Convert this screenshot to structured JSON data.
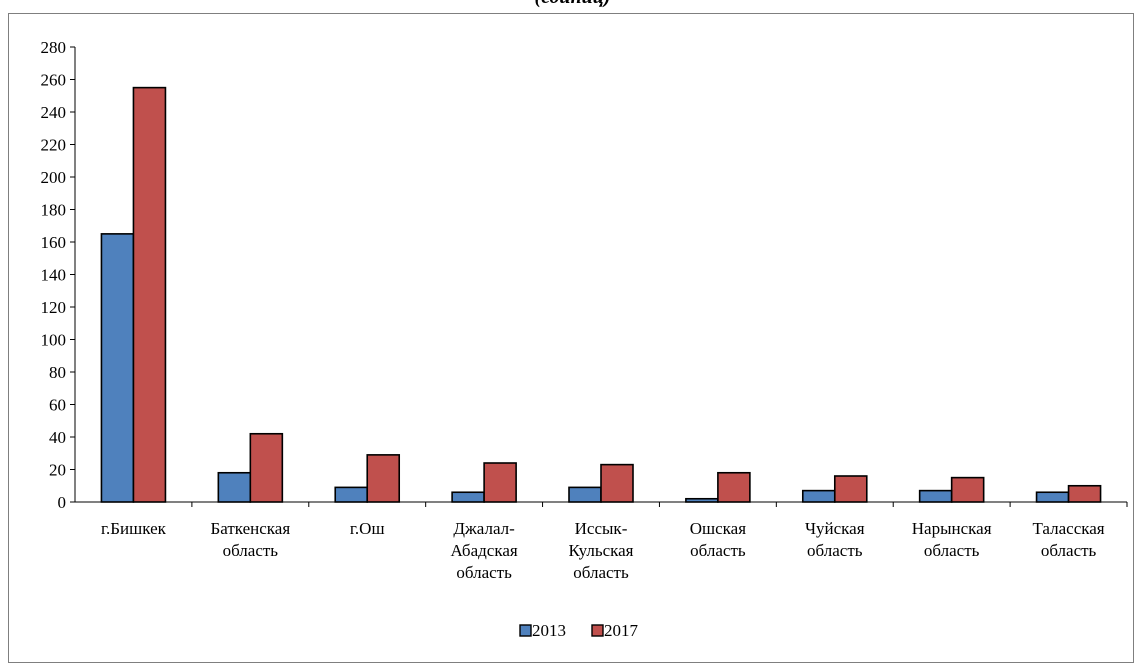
{
  "chart_data": {
    "type": "bar",
    "title": "(единиц)",
    "categories": [
      [
        "г.Бишкек"
      ],
      [
        "Баткенская",
        "область"
      ],
      [
        "г.Ош"
      ],
      [
        "Джалал-",
        "Абадская",
        "область"
      ],
      [
        "Иссык-",
        "Кульская",
        "область"
      ],
      [
        "Ошская",
        "область"
      ],
      [
        "Чуйская",
        "область"
      ],
      [
        "Нарынская",
        "область"
      ],
      [
        "Таласская",
        "область"
      ]
    ],
    "series": [
      {
        "name": "2013",
        "color": "#4f81bd",
        "values": [
          165,
          18,
          9,
          6,
          9,
          2,
          7,
          7,
          6
        ]
      },
      {
        "name": "2017",
        "color": "#c0504d",
        "values": [
          255,
          42,
          29,
          24,
          23,
          18,
          16,
          15,
          10
        ]
      }
    ],
    "ylim": [
      0,
      280
    ],
    "yticks": [
      0,
      20,
      40,
      60,
      80,
      100,
      120,
      140,
      160,
      180,
      200,
      220,
      240,
      260,
      280
    ],
    "grid": false,
    "legend": "bottom-center"
  }
}
